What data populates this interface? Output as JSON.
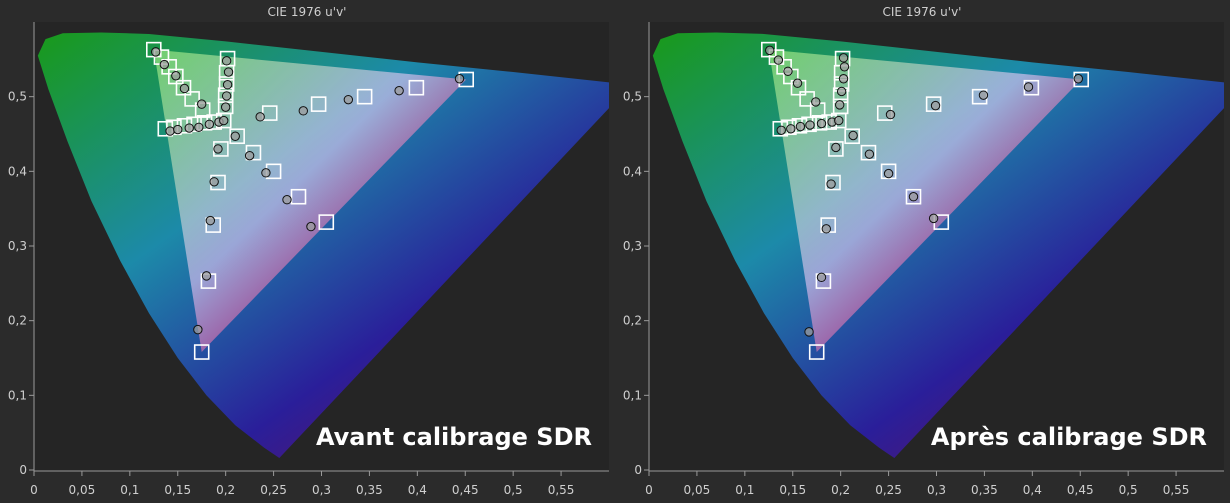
{
  "colors": {
    "background": "#2b2b2b",
    "plot_background": "#252525",
    "axis": "#9a9a9a",
    "text": "#cfcfcf",
    "caption": "#ffffff"
  },
  "chart_data": [
    {
      "type": "scatter",
      "title": "CIE 1976 u'v'",
      "caption": "Avant calibrage SDR",
      "xlabel": "",
      "ylabel": "",
      "xlim": [
        0,
        0.6
      ],
      "ylim": [
        0,
        0.6
      ],
      "xticks": [
        "0",
        "0,05",
        "0,1",
        "0,15",
        "0,2",
        "0,25",
        "0,3",
        "0,35",
        "0,4",
        "0,45",
        "0,5",
        "0,55"
      ],
      "yticks": [
        "0",
        "0,1",
        "0,2",
        "0,3",
        "0,4",
        "0,5"
      ],
      "grid": false,
      "gamut": {
        "red": [
          0.451,
          0.523
        ],
        "green": [
          0.125,
          0.563
        ],
        "blue": [
          0.175,
          0.158
        ],
        "white": [
          0.198,
          0.468
        ]
      },
      "targets": [
        [
          0.125,
          0.563
        ],
        [
          0.133,
          0.553
        ],
        [
          0.141,
          0.54
        ],
        [
          0.148,
          0.527
        ],
        [
          0.156,
          0.512
        ],
        [
          0.165,
          0.497
        ],
        [
          0.176,
          0.482
        ],
        [
          0.202,
          0.551
        ],
        [
          0.201,
          0.532
        ],
        [
          0.201,
          0.517
        ],
        [
          0.2,
          0.502
        ],
        [
          0.2,
          0.487
        ],
        [
          0.137,
          0.457
        ],
        [
          0.146,
          0.459
        ],
        [
          0.157,
          0.461
        ],
        [
          0.167,
          0.463
        ],
        [
          0.178,
          0.465
        ],
        [
          0.188,
          0.466
        ],
        [
          0.212,
          0.447
        ],
        [
          0.229,
          0.425
        ],
        [
          0.25,
          0.4
        ],
        [
          0.276,
          0.366
        ],
        [
          0.305,
          0.332
        ],
        [
          0.246,
          0.478
        ],
        [
          0.297,
          0.49
        ],
        [
          0.345,
          0.5
        ],
        [
          0.399,
          0.512
        ],
        [
          0.451,
          0.523
        ],
        [
          0.195,
          0.43
        ],
        [
          0.192,
          0.385
        ],
        [
          0.187,
          0.328
        ],
        [
          0.182,
          0.253
        ],
        [
          0.175,
          0.158
        ],
        [
          0.198,
          0.468
        ]
      ],
      "measured": [
        [
          0.127,
          0.56
        ],
        [
          0.136,
          0.543
        ],
        [
          0.148,
          0.528
        ],
        [
          0.157,
          0.511
        ],
        [
          0.175,
          0.49
        ],
        [
          0.201,
          0.548
        ],
        [
          0.203,
          0.533
        ],
        [
          0.202,
          0.516
        ],
        [
          0.201,
          0.501
        ],
        [
          0.2,
          0.486
        ],
        [
          0.142,
          0.454
        ],
        [
          0.15,
          0.456
        ],
        [
          0.162,
          0.458
        ],
        [
          0.172,
          0.459
        ],
        [
          0.183,
          0.463
        ],
        [
          0.193,
          0.466
        ],
        [
          0.21,
          0.447
        ],
        [
          0.225,
          0.421
        ],
        [
          0.242,
          0.398
        ],
        [
          0.264,
          0.362
        ],
        [
          0.289,
          0.326
        ],
        [
          0.236,
          0.473
        ],
        [
          0.281,
          0.481
        ],
        [
          0.328,
          0.496
        ],
        [
          0.381,
          0.508
        ],
        [
          0.444,
          0.524
        ],
        [
          0.192,
          0.43
        ],
        [
          0.188,
          0.386
        ],
        [
          0.184,
          0.334
        ],
        [
          0.18,
          0.26
        ],
        [
          0.171,
          0.188
        ],
        [
          0.198,
          0.468
        ]
      ]
    },
    {
      "type": "scatter",
      "title": "CIE 1976 u'v'",
      "caption": "Après calibrage SDR",
      "xlabel": "",
      "ylabel": "",
      "xlim": [
        0,
        0.6
      ],
      "ylim": [
        0,
        0.6
      ],
      "xticks": [
        "0",
        "0,05",
        "0,1",
        "0,15",
        "0,2",
        "0,25",
        "0,3",
        "0,35",
        "0,4",
        "0,45",
        "0,5",
        "0,55"
      ],
      "yticks": [
        "0",
        "0,1",
        "0,2",
        "0,3",
        "0,4",
        "0,5"
      ],
      "grid": false,
      "gamut": {
        "red": [
          0.451,
          0.523
        ],
        "green": [
          0.125,
          0.563
        ],
        "blue": [
          0.175,
          0.158
        ],
        "white": [
          0.198,
          0.468
        ]
      },
      "targets": [
        [
          0.125,
          0.563
        ],
        [
          0.133,
          0.553
        ],
        [
          0.141,
          0.54
        ],
        [
          0.148,
          0.527
        ],
        [
          0.156,
          0.512
        ],
        [
          0.165,
          0.497
        ],
        [
          0.176,
          0.482
        ],
        [
          0.202,
          0.551
        ],
        [
          0.201,
          0.532
        ],
        [
          0.201,
          0.517
        ],
        [
          0.2,
          0.502
        ],
        [
          0.2,
          0.487
        ],
        [
          0.137,
          0.457
        ],
        [
          0.146,
          0.459
        ],
        [
          0.157,
          0.461
        ],
        [
          0.167,
          0.463
        ],
        [
          0.178,
          0.465
        ],
        [
          0.188,
          0.466
        ],
        [
          0.212,
          0.447
        ],
        [
          0.229,
          0.425
        ],
        [
          0.25,
          0.4
        ],
        [
          0.276,
          0.366
        ],
        [
          0.305,
          0.332
        ],
        [
          0.246,
          0.478
        ],
        [
          0.297,
          0.49
        ],
        [
          0.345,
          0.5
        ],
        [
          0.399,
          0.512
        ],
        [
          0.451,
          0.523
        ],
        [
          0.195,
          0.43
        ],
        [
          0.192,
          0.385
        ],
        [
          0.187,
          0.328
        ],
        [
          0.182,
          0.253
        ],
        [
          0.175,
          0.158
        ],
        [
          0.198,
          0.468
        ]
      ],
      "measured": [
        [
          0.126,
          0.562
        ],
        [
          0.135,
          0.549
        ],
        [
          0.145,
          0.534
        ],
        [
          0.155,
          0.518
        ],
        [
          0.174,
          0.493
        ],
        [
          0.203,
          0.552
        ],
        [
          0.204,
          0.54
        ],
        [
          0.203,
          0.524
        ],
        [
          0.201,
          0.507
        ],
        [
          0.199,
          0.489
        ],
        [
          0.138,
          0.455
        ],
        [
          0.148,
          0.457
        ],
        [
          0.158,
          0.46
        ],
        [
          0.168,
          0.462
        ],
        [
          0.18,
          0.464
        ],
        [
          0.191,
          0.466
        ],
        [
          0.213,
          0.448
        ],
        [
          0.23,
          0.423
        ],
        [
          0.25,
          0.397
        ],
        [
          0.276,
          0.366
        ],
        [
          0.297,
          0.337
        ],
        [
          0.252,
          0.476
        ],
        [
          0.299,
          0.488
        ],
        [
          0.349,
          0.502
        ],
        [
          0.396,
          0.513
        ],
        [
          0.448,
          0.524
        ],
        [
          0.195,
          0.432
        ],
        [
          0.19,
          0.383
        ],
        [
          0.185,
          0.323
        ],
        [
          0.18,
          0.258
        ],
        [
          0.167,
          0.185
        ],
        [
          0.198,
          0.468
        ]
      ]
    }
  ]
}
